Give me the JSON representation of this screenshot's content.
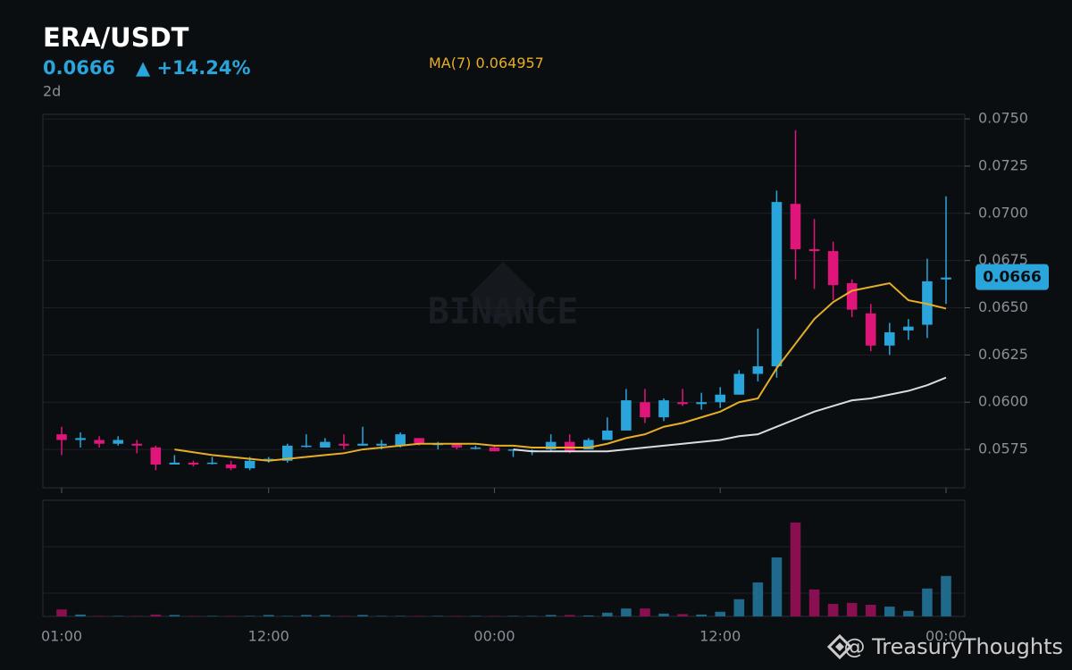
{
  "header": {
    "title": "ERA/USDT",
    "change": "▲ +14.24%",
    "interval": "2d"
  },
  "watermark": "BINANCE",
  "credit": "@ TreasuryThoughts",
  "chart_data": {
    "type": "candlestick",
    "categories": [
      "01:00",
      null,
      null,
      null,
      null,
      null,
      null,
      null,
      null,
      null,
      null,
      "12:00",
      null,
      null,
      null,
      null,
      null,
      null,
      null,
      null,
      null,
      null,
      null,
      "00:00",
      null,
      null,
      null,
      null,
      null,
      null,
      null,
      null,
      null,
      null,
      null,
      "12:00",
      null,
      null,
      null,
      null,
      null,
      null,
      null,
      null,
      null,
      null,
      null,
      "00:00"
    ],
    "open": [
      0.0583,
      0.058,
      0.058,
      0.0578,
      0.0578,
      0.0576,
      0.0567,
      0.0568,
      0.05675,
      0.0567,
      0.0565,
      0.0569,
      0.0569,
      0.05765,
      0.0576,
      0.0578,
      0.0577,
      0.0577,
      0.0577,
      0.0581,
      0.05775,
      0.0578,
      0.05755,
      0.0576,
      0.05745,
      0.0574,
      0.0575,
      0.0579,
      0.0575,
      0.058,
      0.0585,
      0.06,
      0.0592,
      0.06,
      0.0599,
      0.06,
      0.0604,
      0.0615,
      0.0619,
      0.0705,
      0.0681,
      0.068,
      0.0663,
      0.0647,
      0.063,
      0.0638,
      0.0641,
      0.0665
    ],
    "high": [
      0.0587,
      0.0584,
      0.0582,
      0.0582,
      0.058,
      0.0577,
      0.0572,
      0.0569,
      0.0571,
      0.0569,
      0.0571,
      0.0571,
      0.0578,
      0.0583,
      0.0581,
      0.0583,
      0.0587,
      0.058,
      0.0584,
      0.0581,
      0.0579,
      0.0578,
      0.0577,
      0.0577,
      0.0575,
      0.0575,
      0.0583,
      0.0583,
      0.0581,
      0.0592,
      0.0607,
      0.0607,
      0.0602,
      0.0607,
      0.0605,
      0.0608,
      0.0617,
      0.0639,
      0.0712,
      0.0744,
      0.0697,
      0.0685,
      0.0665,
      0.0652,
      0.0642,
      0.0644,
      0.0676,
      0.0709
    ],
    "low": [
      0.0572,
      0.0576,
      0.0576,
      0.0577,
      0.0573,
      0.0564,
      0.0567,
      0.0566,
      0.0567,
      0.0564,
      0.0564,
      0.0568,
      0.0568,
      0.0576,
      0.0576,
      0.0575,
      0.0577,
      0.0575,
      0.0576,
      0.0577,
      0.0575,
      0.0575,
      0.0575,
      0.0574,
      0.0571,
      0.0572,
      0.0574,
      0.0573,
      0.0575,
      0.058,
      0.0585,
      0.0589,
      0.059,
      0.0598,
      0.0596,
      0.0597,
      0.0604,
      0.0611,
      0.0613,
      0.0665,
      0.066,
      0.0654,
      0.0645,
      0.0627,
      0.0625,
      0.0633,
      0.0634,
      0.0652
    ],
    "close": [
      0.058,
      0.0581,
      0.0578,
      0.058,
      0.0577,
      0.0567,
      0.0568,
      0.0567,
      0.0568,
      0.0565,
      0.0569,
      0.057,
      0.0577,
      0.0577,
      0.0579,
      0.0577,
      0.0578,
      0.0578,
      0.0583,
      0.0578,
      0.0578,
      0.0576,
      0.0576,
      0.0574,
      0.0575,
      0.05745,
      0.0579,
      0.0574,
      0.058,
      0.0585,
      0.0601,
      0.0592,
      0.0601,
      0.0599,
      0.06,
      0.0604,
      0.0615,
      0.0619,
      0.0706,
      0.0681,
      0.068,
      0.0662,
      0.0649,
      0.063,
      0.0637,
      0.064,
      0.0664,
      0.0666
    ],
    "volume": [
      0.15,
      0.04,
      0.01,
      0.01,
      0.01,
      0.04,
      0.03,
      0.01,
      0.01,
      0.01,
      0.01,
      0.03,
      0.01,
      0.03,
      0.03,
      0.01,
      0.03,
      0.01,
      0.01,
      0.01,
      0.01,
      0.01,
      0.01,
      0.01,
      0.01,
      0.01,
      0.03,
      0.03,
      0.02,
      0.08,
      0.17,
      0.17,
      0.06,
      0.05,
      0.04,
      0.1,
      0.37,
      0.73,
      1.27,
      2.02,
      0.58,
      0.27,
      0.29,
      0.25,
      0.21,
      0.12,
      0.6,
      0.87
    ],
    "up_color": "#2aa5db",
    "down_color": "#e0157a",
    "series": [
      {
        "name": "MA(7)",
        "color": "#e6ad27",
        "values": [
          null,
          null,
          null,
          null,
          null,
          null,
          0.0575,
          0.05735,
          0.0572,
          0.0571,
          0.057,
          0.0569,
          0.057,
          0.0571,
          0.0572,
          0.0573,
          0.0575,
          0.0576,
          0.0577,
          0.0578,
          0.0578,
          0.0578,
          0.0578,
          0.0577,
          0.0577,
          0.0576,
          0.0576,
          0.0576,
          0.0576,
          0.0578,
          0.0581,
          0.0583,
          0.0587,
          0.0589,
          0.0592,
          0.0595,
          0.06,
          0.0602,
          0.0618,
          0.0631,
          0.0644,
          0.0653,
          0.0659,
          0.0661,
          0.0663,
          0.0654,
          0.0652,
          0.064957
        ]
      },
      {
        "color": "#dcdcdc",
        "values": [
          null,
          null,
          null,
          null,
          null,
          null,
          null,
          null,
          null,
          null,
          null,
          null,
          null,
          null,
          null,
          null,
          null,
          null,
          null,
          null,
          null,
          null,
          null,
          null,
          0.0575,
          0.0574,
          0.0574,
          0.0574,
          0.0574,
          0.0574,
          0.0575,
          0.0576,
          0.0577,
          0.0578,
          0.0579,
          0.058,
          0.0582,
          0.0583,
          0.0587,
          0.0591,
          0.0595,
          0.0598,
          0.0601,
          0.0602,
          0.0604,
          0.0606,
          0.0609,
          0.0613
        ]
      }
    ],
    "ylim": [
      0.05547,
      0.07524
    ],
    "yticks": [
      {
        "value": 0.075,
        "label": "0.0750"
      },
      0.0725,
      {
        "value": 0.07,
        "label": "0.0700"
      },
      0.0675,
      {
        "value": 0.065,
        "label": "0.0650"
      },
      0.0625,
      {
        "value": 0.06,
        "label": "0.0600"
      },
      0.0575
    ],
    "volume_ylim": [
      0,
      2.5
    ],
    "volume_grid": [
      0.5,
      1.5
    ],
    "grid": true
  }
}
